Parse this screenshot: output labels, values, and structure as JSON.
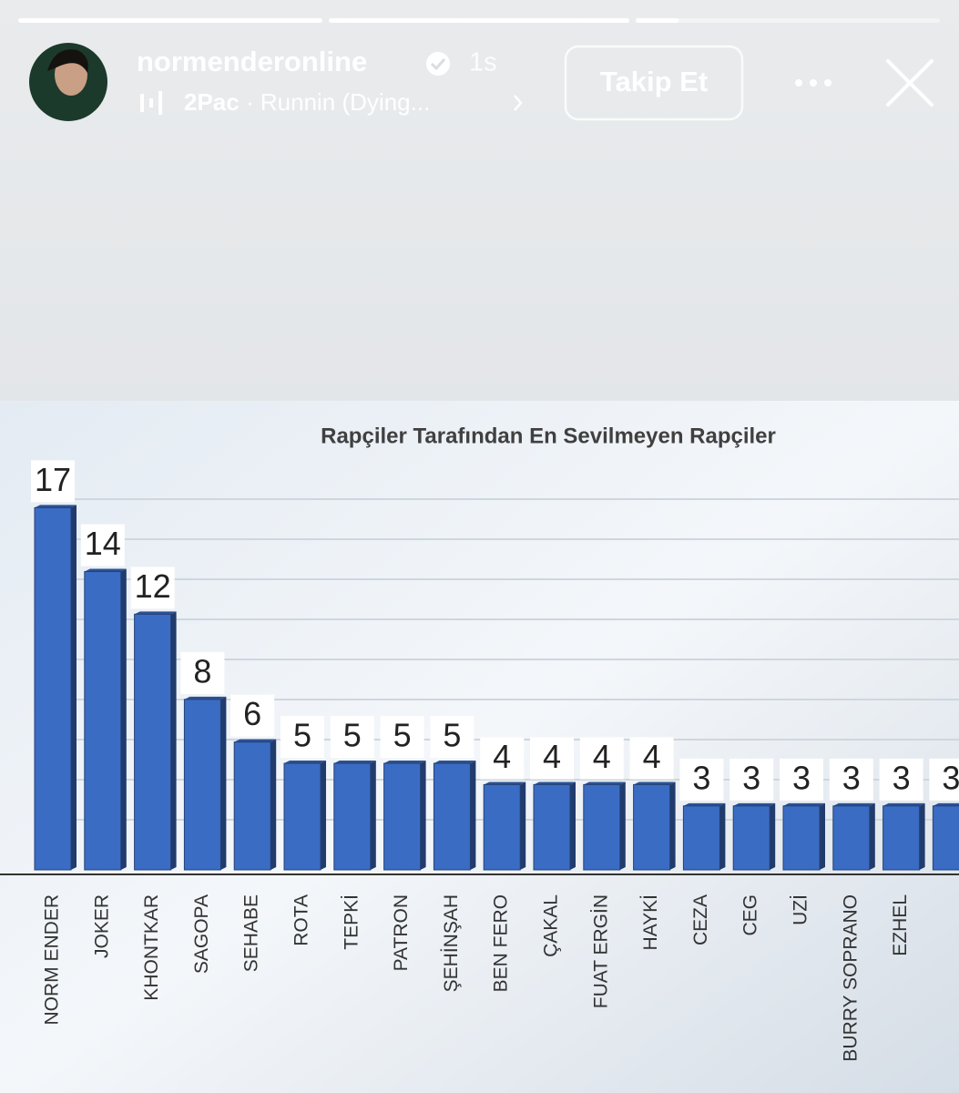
{
  "story": {
    "username": "normenderonline",
    "time": "1s",
    "music_artist": "2Pac",
    "music_separator": "·",
    "music_track": "Runnin (Dying...",
    "follow_button": "Takip Et"
  },
  "chart_data": {
    "type": "bar",
    "title": "Rapçiler Tarafından En Sevilmeyen Rapçiler",
    "categories": [
      "NORM ENDER",
      "JOKER",
      "KHONTKAR",
      "SAGOPA",
      "SEHABE",
      "ROTA",
      "TEPKİ",
      "PATRON",
      "ŞEHİNŞAH",
      "BEN FERO",
      "ÇAKAL",
      "FUAT ERGİN",
      "HAYKİ",
      "CEZA",
      "CEG",
      "UZİ",
      "BURRY SOPRANO",
      "EZHEL",
      null
    ],
    "values": [
      17,
      14,
      12,
      8,
      6,
      5,
      5,
      5,
      5,
      4,
      4,
      4,
      4,
      3,
      3,
      3,
      3,
      3,
      3
    ],
    "color": "#3b6cc4",
    "ylim": [
      0,
      18
    ]
  }
}
